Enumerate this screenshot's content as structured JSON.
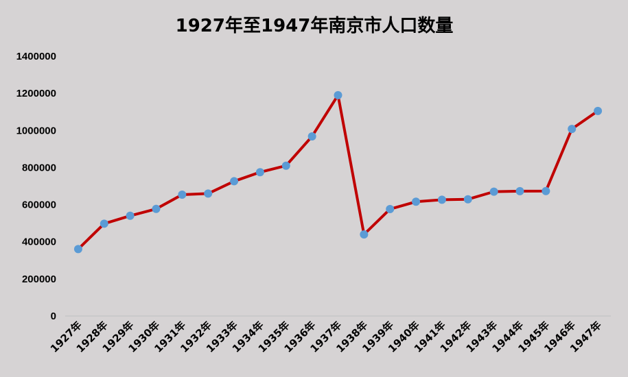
{
  "chart_data": {
    "type": "line",
    "title": "1927年至1947年南京市人口数量",
    "xlabel": "",
    "ylabel": "",
    "categories": [
      "1927年",
      "1928年",
      "1929年",
      "1930年",
      "1931年",
      "1932年",
      "1933年",
      "1934年",
      "1935年",
      "1936年",
      "1937年",
      "1938年",
      "1939年",
      "1940年",
      "1941年",
      "1942年",
      "1943年",
      "1944年",
      "1945年",
      "1946年",
      "1947年"
    ],
    "series": [
      {
        "values": [
          360500,
          497500,
          540120,
          577100,
          653900,
          659700,
          726100,
          775000,
          810000,
          968000,
          1190000,
          439600,
          576100,
          615800,
          626500,
          629000,
          670000,
          672600,
          673300,
          1008100,
          1104900
        ]
      }
    ],
    "ylim": [
      0,
      1400000
    ],
    "yticks": [
      0,
      200000,
      400000,
      600000,
      800000,
      1000000,
      1200000,
      1400000
    ],
    "ytick_labels": [
      "0",
      "200000",
      "400000",
      "600000",
      "800000",
      "1000000",
      "1200000",
      "1400000"
    ],
    "grid": false,
    "legend": "none",
    "colors": {
      "line": "#c00000",
      "marker": "#5b9bd5",
      "background": "#d6d3d4",
      "axis": "#bfbfbf"
    }
  }
}
